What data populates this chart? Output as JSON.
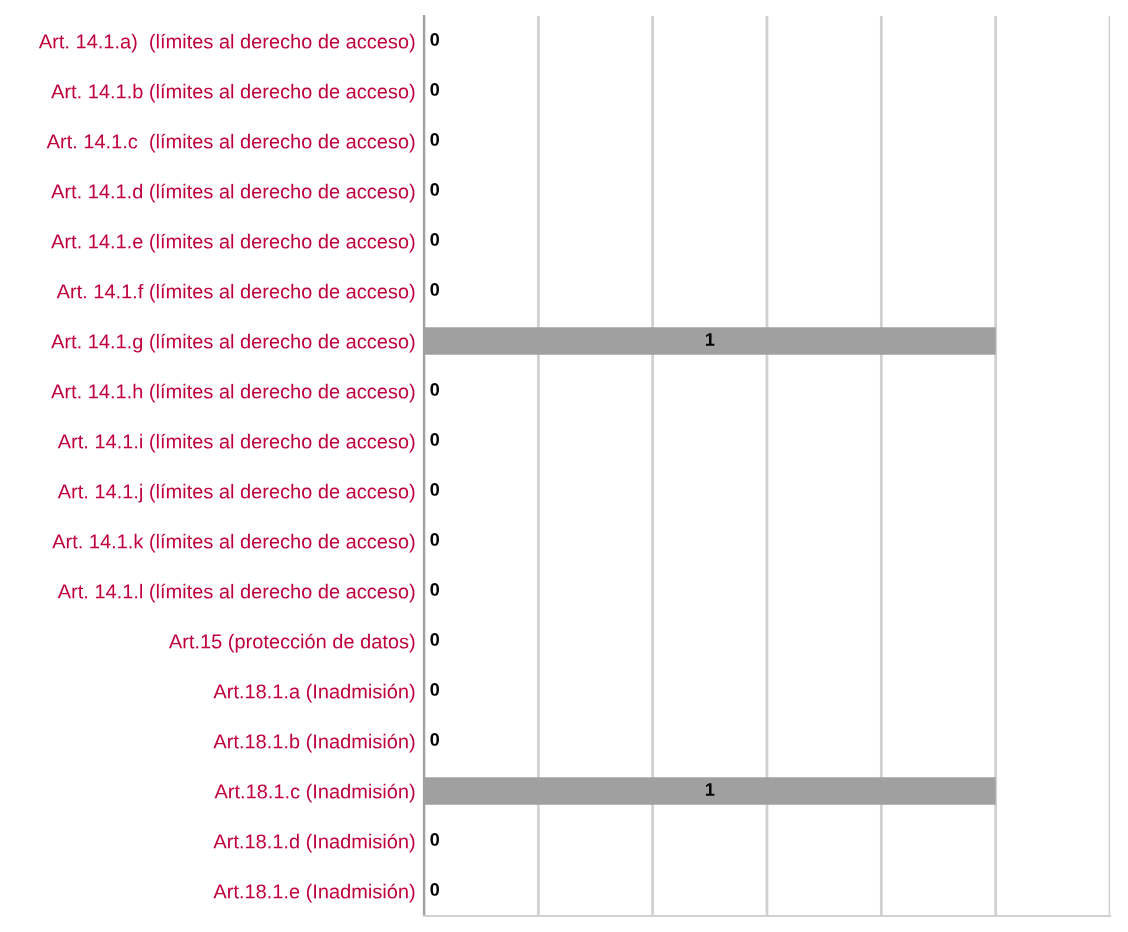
{
  "chart_data": {
    "type": "bar",
    "orientation": "horizontal",
    "categories": [
      "Art. 14.1.a)  (límites al derecho de acceso)",
      "Art. 14.1.b (límites al derecho de acceso)",
      "Art. 14.1.c  (límites al derecho de acceso)",
      "Art. 14.1.d (límites al derecho de acceso)",
      "Art. 14.1.e (límites al derecho de acceso)",
      "Art. 14.1.f (límites al derecho de acceso)",
      "Art. 14.1.g (límites al derecho de acceso)",
      "Art. 14.1.h (límites al derecho de acceso)",
      "Art. 14.1.i (límites al derecho de acceso)",
      "Art. 14.1.j (límites al derecho de acceso)",
      "Art. 14.1.k (límites al derecho de acceso)",
      "Art. 14.1.l (límites al derecho de acceso)",
      "Art.15 (protección de datos)",
      "Art.18.1.a (Inadmisión)",
      "Art.18.1.b (Inadmisión)",
      "Art.18.1.c (Inadmisión)",
      "Art.18.1.d (Inadmisión)",
      "Art.18.1.e (Inadmisión)"
    ],
    "values": [
      0,
      0,
      0,
      0,
      0,
      0,
      1,
      0,
      0,
      0,
      0,
      0,
      0,
      0,
      0,
      1,
      0,
      0
    ],
    "color": "#a0a0a0",
    "xlim": [
      0,
      1.2
    ],
    "xticks": [
      {
        "value": 0,
        "label": null
      },
      {
        "value": 0.2,
        "label": null
      },
      {
        "value": 0.4,
        "label": null
      },
      {
        "value": 0.6,
        "label": null
      },
      {
        "value": 0.8,
        "label": null
      },
      {
        "value": 1.0,
        "label": null
      },
      {
        "value": 1.2,
        "label": null
      }
    ],
    "tick_labels": "y",
    "grid": "x",
    "data_labels": true,
    "legend": false
  }
}
